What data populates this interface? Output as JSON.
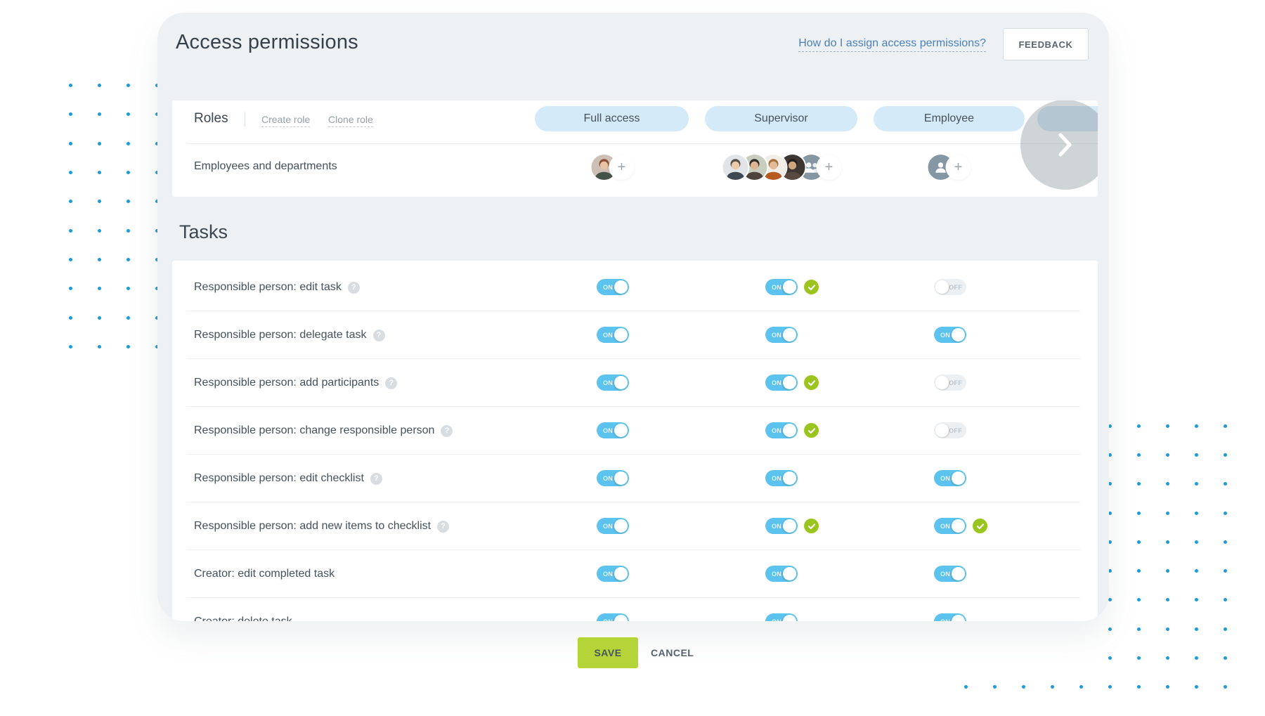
{
  "header": {
    "title": "Access permissions",
    "help_link": "How do I assign access permissions?",
    "feedback_button": "FEEDBACK"
  },
  "roles_panel": {
    "section_label": "Roles",
    "create_role_link": "Create role",
    "clone_role_link": "Clone role",
    "employees_row_label": "Employees and departments",
    "roles": [
      {
        "label": "Full access",
        "avatars": [
          {
            "kind": "photo",
            "bg": "#cdbfb4",
            "hair": "#8e4f3a",
            "skin": "#e8c3a4",
            "shirt": "#45524a"
          },
          {
            "kind": "add"
          }
        ]
      },
      {
        "label": "Supervisor",
        "avatars": [
          {
            "kind": "photo",
            "bg": "#e2e5e7",
            "hair": "#55504a",
            "skin": "#ecc9ab",
            "shirt": "#3e4852"
          },
          {
            "kind": "photo",
            "bg": "#c9cdbf",
            "hair": "#2f2b27",
            "skin": "#dcb694",
            "shirt": "#4c443d"
          },
          {
            "kind": "photo",
            "bg": "#f1ede7",
            "hair": "#a76f40",
            "skin": "#e2bc98",
            "shirt": "#b65a20"
          },
          {
            "kind": "photo",
            "bg": "#3d3632",
            "hair": "#261f1c",
            "skin": "#cda57f",
            "shirt": "#584a40"
          },
          {
            "kind": "group"
          },
          {
            "kind": "add"
          }
        ]
      },
      {
        "label": "Employee",
        "avatars": [
          {
            "kind": "person"
          },
          {
            "kind": "add"
          }
        ]
      },
      {
        "label": "",
        "partial": true
      }
    ]
  },
  "tasks_panel": {
    "section_label": "Tasks",
    "toggle_on_label": "ON",
    "toggle_off_label": "OFF",
    "rows": [
      {
        "label": "Responsible person: edit task",
        "help": true,
        "toggles": [
          {
            "state": "on"
          },
          {
            "state": "on",
            "check": true
          },
          {
            "state": "off"
          }
        ]
      },
      {
        "label": "Responsible person: delegate task",
        "help": true,
        "toggles": [
          {
            "state": "on"
          },
          {
            "state": "on"
          },
          {
            "state": "on"
          }
        ]
      },
      {
        "label": "Responsible person: add participants",
        "help": true,
        "toggles": [
          {
            "state": "on"
          },
          {
            "state": "on",
            "check": true
          },
          {
            "state": "off"
          }
        ]
      },
      {
        "label": "Responsible person: change responsible person",
        "help": true,
        "toggles": [
          {
            "state": "on"
          },
          {
            "state": "on",
            "check": true
          },
          {
            "state": "off"
          }
        ]
      },
      {
        "label": "Responsible person: edit checklist",
        "help": true,
        "toggles": [
          {
            "state": "on"
          },
          {
            "state": "on"
          },
          {
            "state": "on"
          }
        ]
      },
      {
        "label": "Responsible person: add new items to checklist",
        "help": true,
        "toggles": [
          {
            "state": "on"
          },
          {
            "state": "on",
            "check": true
          },
          {
            "state": "on",
            "check": true
          }
        ]
      },
      {
        "label": "Creator: edit completed task",
        "help": false,
        "toggles": [
          {
            "state": "on"
          },
          {
            "state": "on"
          },
          {
            "state": "on"
          }
        ]
      },
      {
        "label": "Creator: delete task",
        "help": false,
        "toggles": [
          {
            "state": "on"
          },
          {
            "state": "on"
          },
          {
            "state": "on"
          }
        ]
      }
    ]
  },
  "footer": {
    "save_button": "SAVE",
    "cancel_button": "CANCEL"
  },
  "icons": {
    "plus": "+",
    "help": "?"
  },
  "colors": {
    "toggle_on": "#5cc3ee",
    "pill_blue": "#d5eaf8",
    "check_badge": "#9cc41f",
    "save_green": "#b5d438",
    "dot_blue": "#1b9cd8",
    "link_blue": "#4d80bb",
    "placeholder_avatar": "#8697a4"
  }
}
